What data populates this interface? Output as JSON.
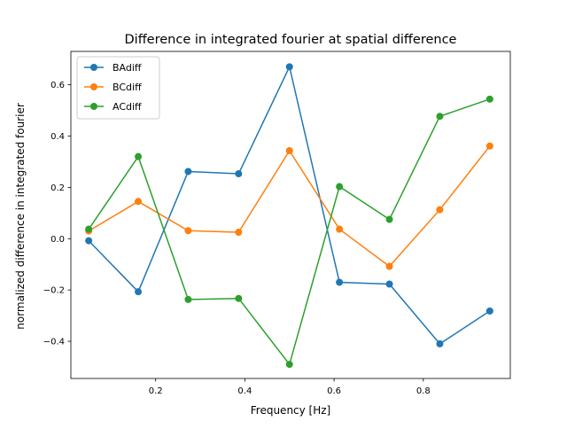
{
  "chart_data": {
    "type": "line",
    "title": "Difference in integrated fourier at spatial difference",
    "xlabel": "Frequency [Hz]",
    "ylabel": "normalized difference in integrated fourier",
    "xlim": [
      0.01,
      0.995
    ],
    "ylim": [
      -0.545,
      0.73
    ],
    "xticks": [
      0.2,
      0.4,
      0.6,
      0.8
    ],
    "xtick_labels": [
      "0.2",
      "0.4",
      "0.6",
      "0.8"
    ],
    "yticks": [
      -0.4,
      -0.2,
      0.0,
      0.2,
      0.4,
      0.6
    ],
    "ytick_labels": [
      "−0.4",
      "−0.2",
      "0.0",
      "0.2",
      "0.4",
      "0.6"
    ],
    "grid": false,
    "legend_position": "top-left",
    "x": [
      0.05,
      0.161,
      0.273,
      0.386,
      0.5,
      0.612,
      0.724,
      0.837,
      0.949
    ],
    "series": [
      {
        "name": "BAdiff",
        "color": "#1f77b4",
        "values": [
          -0.008,
          -0.207,
          0.262,
          0.253,
          0.67,
          -0.17,
          -0.177,
          -0.41,
          -0.282
        ]
      },
      {
        "name": "BCdiff",
        "color": "#ff7f0e",
        "values": [
          0.03,
          0.145,
          0.031,
          0.025,
          0.343,
          0.037,
          -0.108,
          0.113,
          0.361
        ]
      },
      {
        "name": "ACdiff",
        "color": "#2ca02c",
        "values": [
          0.037,
          0.32,
          -0.237,
          -0.233,
          -0.49,
          0.203,
          0.075,
          0.477,
          0.544
        ]
      }
    ]
  }
}
